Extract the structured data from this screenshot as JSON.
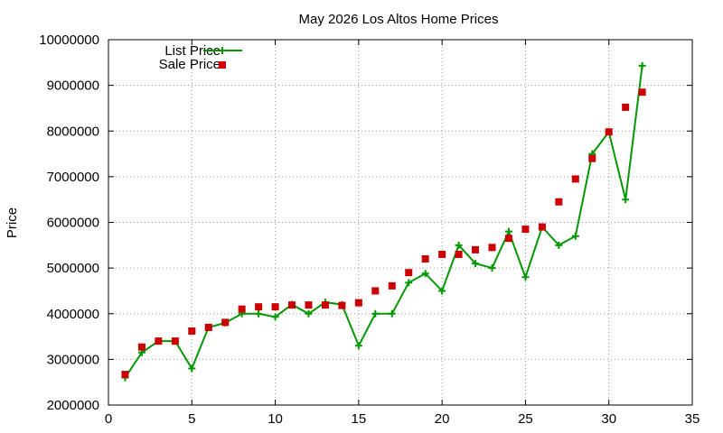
{
  "chart_data": {
    "type": "line",
    "title": "May 2026 Los Altos Home Prices",
    "xlabel": "",
    "ylabel": "Price",
    "xlim": [
      0,
      35
    ],
    "ylim": [
      2000000,
      10000000
    ],
    "xticks": [
      0,
      5,
      10,
      15,
      20,
      25,
      30,
      35
    ],
    "yticks": [
      2000000,
      3000000,
      4000000,
      5000000,
      6000000,
      7000000,
      8000000,
      9000000,
      10000000
    ],
    "xtick_labels": [
      "0",
      "5",
      "10",
      "15",
      "20",
      "25",
      "30",
      "35"
    ],
    "ytick_labels": [
      "2000000",
      "3000000",
      "4000000",
      "5000000",
      "6000000",
      "7000000",
      "8000000",
      "9000000",
      "10000000"
    ],
    "grid": true,
    "legend_position": "top-left",
    "series": [
      {
        "name": "List Price",
        "style": "line-with-plus-markers",
        "color": "#009900",
        "points": [
          [
            1,
            2600000
          ],
          [
            2,
            3150000
          ],
          [
            3,
            3400000
          ],
          [
            4,
            3400000
          ],
          [
            5,
            2800000
          ],
          [
            6,
            3700000
          ],
          [
            7,
            3800000
          ],
          [
            8,
            4000000
          ],
          [
            9,
            4000000
          ],
          [
            10,
            3930000
          ],
          [
            11,
            4200000
          ],
          [
            12,
            4000000
          ],
          [
            13,
            4250000
          ],
          [
            14,
            4200000
          ],
          [
            15,
            3300000
          ],
          [
            16,
            4000000
          ],
          [
            17,
            4000000
          ],
          [
            18,
            4680000
          ],
          [
            19,
            4880000
          ],
          [
            20,
            4500000
          ],
          [
            21,
            5500000
          ],
          [
            22,
            5100000
          ],
          [
            23,
            5000000
          ],
          [
            24,
            5800000
          ],
          [
            25,
            4800000
          ],
          [
            26,
            5900000
          ],
          [
            27,
            5500000
          ],
          [
            28,
            5700000
          ],
          [
            29,
            7500000
          ],
          [
            30,
            7980000
          ],
          [
            31,
            6500000
          ],
          [
            32,
            9430000
          ]
        ]
      },
      {
        "name": "Sale Price",
        "style": "square-markers",
        "color": "#cc0000",
        "points": [
          [
            1,
            2670000
          ],
          [
            2,
            3270000
          ],
          [
            3,
            3400000
          ],
          [
            4,
            3400000
          ],
          [
            5,
            3620000
          ],
          [
            6,
            3700000
          ],
          [
            7,
            3810000
          ],
          [
            8,
            4100000
          ],
          [
            9,
            4150000
          ],
          [
            10,
            4150000
          ],
          [
            11,
            4190000
          ],
          [
            12,
            4190000
          ],
          [
            13,
            4190000
          ],
          [
            14,
            4180000
          ],
          [
            15,
            4240000
          ],
          [
            16,
            4500000
          ],
          [
            17,
            4610000
          ],
          [
            18,
            4900000
          ],
          [
            19,
            5200000
          ],
          [
            20,
            5300000
          ],
          [
            21,
            5300000
          ],
          [
            22,
            5400000
          ],
          [
            23,
            5450000
          ],
          [
            24,
            5650000
          ],
          [
            25,
            5850000
          ],
          [
            26,
            5900000
          ],
          [
            27,
            6450000
          ],
          [
            28,
            6950000
          ],
          [
            29,
            7400000
          ],
          [
            30,
            7980000
          ],
          [
            31,
            8520000
          ],
          [
            32,
            8850000
          ]
        ]
      }
    ]
  }
}
